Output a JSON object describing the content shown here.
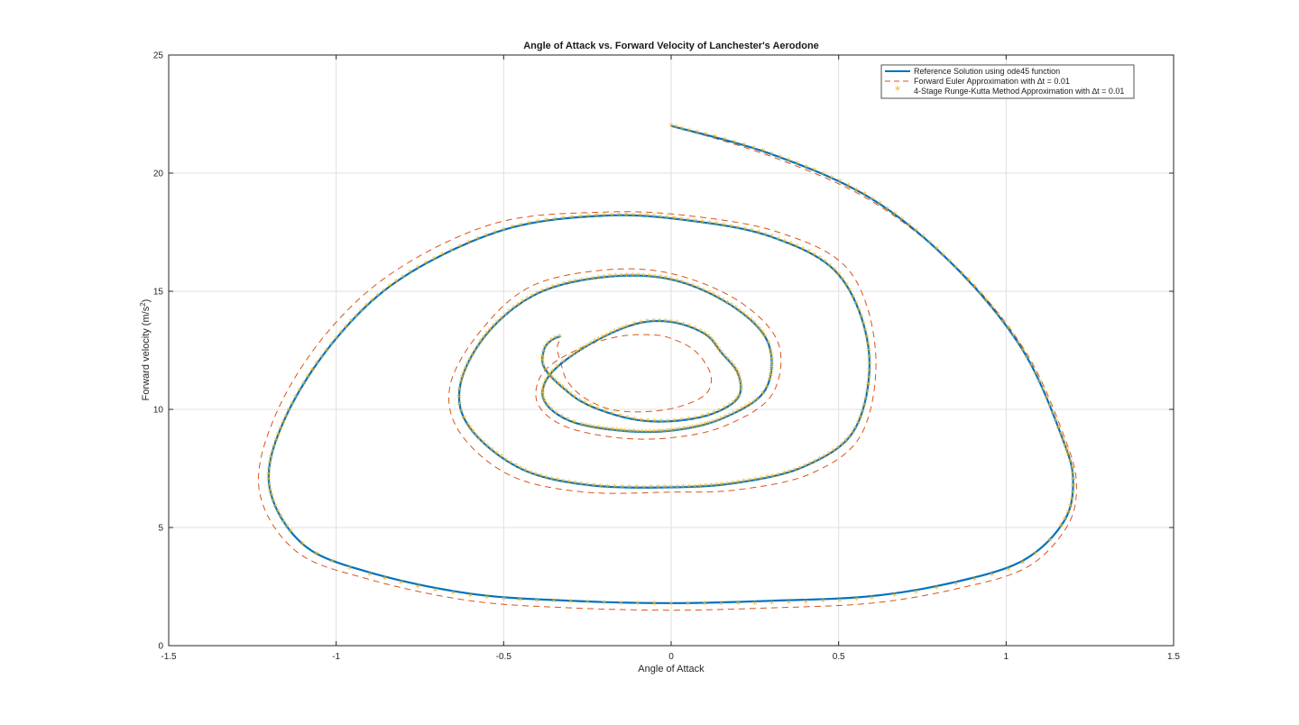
{
  "chart_data": {
    "type": "line",
    "title": "Angle of Attack vs. Forward Velocity of Lanchester's Aerodone",
    "xlabel": "Angle of Attack",
    "ylabel": "Forward velocity (m/s",
    "ylabel_sup": "2",
    "ylabel_end": ")",
    "xlim": [
      -1.5,
      1.5
    ],
    "ylim": [
      0,
      25
    ],
    "xticks": [
      -1.5,
      -1,
      -0.5,
      0,
      0.5,
      1,
      1.5
    ],
    "xtick_labels": [
      "-1.5",
      "-1",
      "-0.5",
      "0",
      "0.5",
      "1",
      "1.5"
    ],
    "yticks": [
      0,
      5,
      10,
      15,
      20,
      25
    ],
    "ytick_labels": [
      "0",
      "5",
      "10",
      "15",
      "20",
      "25"
    ],
    "grid": true,
    "legend_position": "top-right",
    "series": [
      {
        "name": "Reference Solution using ode45 function",
        "style": "solid",
        "color": "#0072BD",
        "x": [
          0.0,
          0.3,
          0.6,
          0.85,
          1.05,
          1.17,
          1.2,
          1.17,
          1.05,
          0.85,
          0.6,
          0.3,
          0.0,
          -0.3,
          -0.6,
          -0.9,
          -1.1,
          -1.2,
          -1.15,
          -1.0,
          -0.8,
          -0.5,
          -0.2,
          0.05,
          0.3,
          0.5,
          0.59,
          0.55,
          0.4,
          0.2,
          0.0,
          -0.25,
          -0.45,
          -0.6,
          -0.63,
          -0.55,
          -0.4,
          -0.2,
          0.0,
          0.18,
          0.29,
          0.28,
          0.15,
          0.0,
          -0.15,
          -0.3,
          -0.38,
          -0.36,
          -0.25,
          -0.11,
          0.0,
          0.1,
          0.15,
          0.2,
          0.2,
          0.12,
          0.0,
          -0.12,
          -0.25,
          -0.33,
          -0.38,
          -0.38,
          -0.36,
          -0.33
        ],
        "y": [
          22.0,
          20.8,
          18.9,
          16.0,
          12.5,
          8.7,
          6.9,
          5.2,
          3.6,
          2.7,
          2.1,
          1.9,
          1.8,
          1.9,
          2.2,
          3.1,
          4.3,
          6.8,
          9.7,
          13.0,
          15.6,
          17.6,
          18.2,
          18.0,
          17.3,
          15.7,
          12.5,
          9.2,
          7.6,
          6.9,
          6.7,
          6.8,
          7.5,
          9.2,
          11.0,
          13.2,
          14.9,
          15.6,
          15.5,
          14.4,
          12.8,
          10.8,
          9.6,
          9.1,
          9.1,
          9.5,
          10.4,
          11.5,
          12.7,
          13.6,
          13.7,
          13.2,
          12.4,
          11.5,
          10.5,
          9.8,
          9.5,
          9.6,
          10.2,
          11.0,
          11.8,
          12.5,
          12.9,
          13.1
        ]
      },
      {
        "name": "Forward Euler Approximation with ∆t = 0.01",
        "style": "dashed",
        "color": "#D95319",
        "x": [
          0.0,
          0.3,
          0.6,
          0.86,
          1.06,
          1.18,
          1.21,
          1.18,
          1.06,
          0.85,
          0.6,
          0.3,
          0.0,
          -0.3,
          -0.6,
          -0.9,
          -1.12,
          -1.23,
          -1.18,
          -1.03,
          -0.82,
          -0.52,
          -0.2,
          0.05,
          0.32,
          0.53,
          0.61,
          0.57,
          0.42,
          0.2,
          0.0,
          -0.26,
          -0.48,
          -0.63,
          -0.66,
          -0.57,
          -0.42,
          -0.2,
          0.0,
          0.2,
          0.32,
          0.3,
          0.16,
          0.0,
          -0.16,
          -0.32,
          -0.4,
          -0.38,
          -0.27,
          -0.15,
          -0.05,
          0.0,
          0.06,
          0.1,
          0.12,
          0.1,
          0.02,
          -0.08,
          -0.18,
          -0.26,
          -0.31,
          -0.33,
          -0.34,
          -0.33
        ],
        "y": [
          22.0,
          20.7,
          18.8,
          15.9,
          12.4,
          8.6,
          6.7,
          5.0,
          3.3,
          2.4,
          1.8,
          1.6,
          1.5,
          1.6,
          1.9,
          2.8,
          4.0,
          6.6,
          9.8,
          13.2,
          15.9,
          17.9,
          18.35,
          18.2,
          17.5,
          15.9,
          12.5,
          9.0,
          7.3,
          6.6,
          6.5,
          6.5,
          7.2,
          9.0,
          11.0,
          13.3,
          15.2,
          15.9,
          15.75,
          14.6,
          12.8,
          10.6,
          9.3,
          8.8,
          8.8,
          9.3,
          10.3,
          11.6,
          12.6,
          13.1,
          13.15,
          13.0,
          12.6,
          12.0,
          11.3,
          10.6,
          10.1,
          9.9,
          10.0,
          10.5,
          11.2,
          12.0,
          12.6,
          13.0
        ]
      },
      {
        "name": "4-Stage Runge-Kutta Method Approximation with ∆t = 0.01",
        "style": "markers",
        "marker": "*",
        "color": "#EDB120",
        "x": [
          0.0,
          0.3,
          0.6,
          0.85,
          1.05,
          1.17,
          1.2,
          1.17,
          1.05,
          0.85,
          0.6,
          0.3,
          0.0,
          -0.3,
          -0.6,
          -0.9,
          -1.1,
          -1.2,
          -1.15,
          -1.0,
          -0.8,
          -0.5,
          -0.2,
          0.05,
          0.3,
          0.5,
          0.59,
          0.55,
          0.4,
          0.2,
          0.0,
          -0.25,
          -0.45,
          -0.6,
          -0.63,
          -0.55,
          -0.4,
          -0.2,
          0.0,
          0.18,
          0.29,
          0.28,
          0.15,
          0.0,
          -0.15,
          -0.3,
          -0.38,
          -0.36,
          -0.25,
          -0.11,
          0.0,
          0.1,
          0.15,
          0.2,
          0.2,
          0.12,
          0.0,
          -0.12,
          -0.25,
          -0.33,
          -0.38,
          -0.38,
          -0.36,
          -0.33
        ],
        "y": [
          22.0,
          20.8,
          18.9,
          16.0,
          12.5,
          8.7,
          6.9,
          5.2,
          3.5,
          2.6,
          2.0,
          1.8,
          1.75,
          1.85,
          2.1,
          3.0,
          4.3,
          6.8,
          9.7,
          13.0,
          15.6,
          17.6,
          18.2,
          18.0,
          17.3,
          15.7,
          12.5,
          9.2,
          7.6,
          6.9,
          6.7,
          6.8,
          7.5,
          9.2,
          11.0,
          13.2,
          14.9,
          15.6,
          15.5,
          14.4,
          12.8,
          10.8,
          9.6,
          9.1,
          9.1,
          9.5,
          10.4,
          11.5,
          12.7,
          13.6,
          13.7,
          13.2,
          12.4,
          11.5,
          10.5,
          9.8,
          9.5,
          9.6,
          10.2,
          11.0,
          11.8,
          12.5,
          12.9,
          13.1
        ]
      }
    ]
  }
}
